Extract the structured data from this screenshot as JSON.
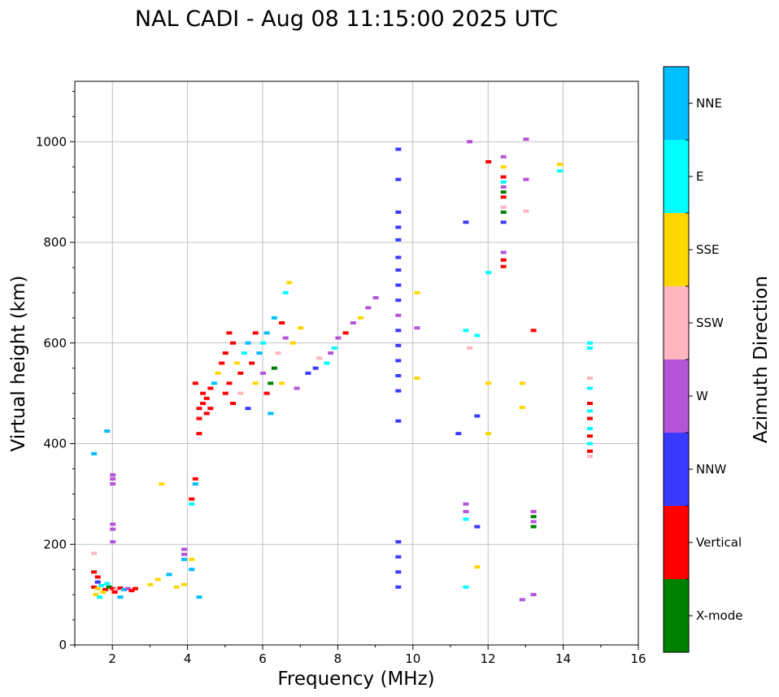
{
  "chart_data": {
    "type": "scatter",
    "title": "NAL CADI - Aug 08 11:15:00 2025 UTC",
    "xlabel": "Frequency (MHz)",
    "ylabel": "Virtual height (km)",
    "xlim": [
      1,
      16
    ],
    "ylim": [
      0,
      1120
    ],
    "xticks": [
      "2",
      "4",
      "6",
      "8",
      "10",
      "12",
      "14",
      "16"
    ],
    "yticks": [
      "0",
      "200",
      "400",
      "600",
      "800",
      "1000"
    ],
    "grid": true,
    "colorbar": {
      "label": "Azimuth Direction",
      "categories": [
        {
          "name": "X-mode",
          "color": "#008000"
        },
        {
          "name": "Vertical",
          "color": "#ff0000"
        },
        {
          "name": "NNW",
          "color": "#3a3aff"
        },
        {
          "name": "W",
          "color": "#b455d8"
        },
        {
          "name": "SSW",
          "color": "#ffb6c1"
        },
        {
          "name": "SSE",
          "color": "#ffd700"
        },
        {
          "name": "E",
          "color": "#00ffff"
        },
        {
          "name": "NNE",
          "color": "#00bfff"
        }
      ]
    },
    "points": [
      [
        1.5,
        115,
        "Vertical"
      ],
      [
        1.6,
        112,
        "SSE"
      ],
      [
        1.7,
        118,
        "E"
      ],
      [
        1.8,
        110,
        "Vertical"
      ],
      [
        1.9,
        115,
        "X-mode"
      ],
      [
        2.0,
        112,
        "Vertical"
      ],
      [
        2.1,
        110,
        "SSW"
      ],
      [
        2.2,
        113,
        "Vertical"
      ],
      [
        2.3,
        110,
        "NNE"
      ],
      [
        2.4,
        112,
        "W"
      ],
      [
        2.5,
        108,
        "Vertical"
      ],
      [
        1.55,
        100,
        "SSE"
      ],
      [
        1.65,
        95,
        "E"
      ],
      [
        1.5,
        145,
        "Vertical"
      ],
      [
        1.6,
        125,
        "NNW"
      ],
      [
        1.75,
        105,
        "SSE"
      ],
      [
        1.85,
        122,
        "E"
      ],
      [
        2.05,
        105,
        "Vertical"
      ],
      [
        2.2,
        95,
        "NNE"
      ],
      [
        2.6,
        112,
        "Vertical"
      ],
      [
        1.5,
        380,
        "NNE"
      ],
      [
        1.5,
        182,
        "SSW"
      ],
      [
        1.6,
        135,
        "Vertical"
      ],
      [
        1.85,
        425,
        "NNE"
      ],
      [
        2.0,
        330,
        "W"
      ],
      [
        2.0,
        338,
        "W"
      ],
      [
        2.0,
        320,
        "W"
      ],
      [
        2.0,
        240,
        "W"
      ],
      [
        2.0,
        230,
        "W"
      ],
      [
        2.0,
        205,
        "W"
      ],
      [
        3.0,
        120,
        "SSE"
      ],
      [
        3.2,
        130,
        "SSE"
      ],
      [
        3.5,
        140,
        "NNE"
      ],
      [
        3.7,
        115,
        "SSE"
      ],
      [
        3.9,
        120,
        "SSE"
      ],
      [
        3.9,
        170,
        "NNE"
      ],
      [
        3.9,
        190,
        "W"
      ],
      [
        3.9,
        180,
        "W"
      ],
      [
        4.1,
        170,
        "SSE"
      ],
      [
        4.1,
        150,
        "NNE"
      ],
      [
        3.3,
        320,
        "SSE"
      ],
      [
        4.1,
        290,
        "Vertical"
      ],
      [
        4.1,
        280,
        "E"
      ],
      [
        4.2,
        330,
        "Vertical"
      ],
      [
        4.2,
        320,
        "NNE"
      ],
      [
        4.3,
        95,
        "NNE"
      ],
      [
        4.3,
        450,
        "Vertical"
      ],
      [
        4.3,
        470,
        "Vertical"
      ],
      [
        4.4,
        480,
        "Vertical"
      ],
      [
        4.4,
        500,
        "Vertical"
      ],
      [
        4.5,
        460,
        "Vertical"
      ],
      [
        4.5,
        490,
        "Vertical"
      ],
      [
        4.6,
        470,
        "Vertical"
      ],
      [
        4.6,
        510,
        "Vertical"
      ],
      [
        4.2,
        520,
        "Vertical"
      ],
      [
        4.3,
        420,
        "Vertical"
      ],
      [
        4.7,
        520,
        "NNE"
      ],
      [
        4.8,
        540,
        "SSE"
      ],
      [
        4.9,
        560,
        "Vertical"
      ],
      [
        5.0,
        580,
        "Vertical"
      ],
      [
        5.0,
        500,
        "Vertical"
      ],
      [
        5.1,
        520,
        "Vertical"
      ],
      [
        5.1,
        620,
        "Vertical"
      ],
      [
        5.2,
        600,
        "Vertical"
      ],
      [
        5.3,
        560,
        "SSE"
      ],
      [
        5.4,
        540,
        "Vertical"
      ],
      [
        5.5,
        580,
        "E"
      ],
      [
        5.6,
        600,
        "NNE"
      ],
      [
        5.7,
        560,
        "Vertical"
      ],
      [
        5.8,
        620,
        "Vertical"
      ],
      [
        5.9,
        580,
        "NNE"
      ],
      [
        6.0,
        540,
        "W"
      ],
      [
        6.0,
        600,
        "E"
      ],
      [
        6.1,
        500,
        "Vertical"
      ],
      [
        6.2,
        520,
        "X-mode"
      ],
      [
        6.3,
        550,
        "X-mode"
      ],
      [
        6.4,
        580,
        "SSW"
      ],
      [
        6.5,
        520,
        "SSE"
      ],
      [
        5.2,
        480,
        "Vertical"
      ],
      [
        5.4,
        500,
        "SSW"
      ],
      [
        5.6,
        470,
        "NNW"
      ],
      [
        5.8,
        520,
        "SSE"
      ],
      [
        6.2,
        460,
        "NNE"
      ],
      [
        6.1,
        620,
        "NNE"
      ],
      [
        6.3,
        650,
        "NNE"
      ],
      [
        6.5,
        640,
        "Vertical"
      ],
      [
        6.6,
        700,
        "E"
      ],
      [
        6.7,
        720,
        "SSE"
      ],
      [
        6.6,
        610,
        "W"
      ],
      [
        6.8,
        600,
        "SSE"
      ],
      [
        6.9,
        510,
        "W"
      ],
      [
        7.0,
        630,
        "SSE"
      ],
      [
        7.2,
        540,
        "NNW"
      ],
      [
        7.4,
        550,
        "NNW"
      ],
      [
        7.5,
        570,
        "SSW"
      ],
      [
        7.7,
        560,
        "E"
      ],
      [
        7.8,
        580,
        "W"
      ],
      [
        7.9,
        590,
        "E"
      ],
      [
        8.0,
        610,
        "W"
      ],
      [
        8.2,
        620,
        "Vertical"
      ],
      [
        8.4,
        640,
        "W"
      ],
      [
        8.6,
        650,
        "SSE"
      ],
      [
        8.8,
        670,
        "W"
      ],
      [
        9.0,
        690,
        "W"
      ],
      [
        9.6,
        985,
        "NNW"
      ],
      [
        9.6,
        925,
        "NNW"
      ],
      [
        9.6,
        860,
        "NNW"
      ],
      [
        9.6,
        830,
        "NNW"
      ],
      [
        9.6,
        805,
        "NNW"
      ],
      [
        9.6,
        770,
        "NNW"
      ],
      [
        9.6,
        745,
        "NNW"
      ],
      [
        9.6,
        715,
        "NNW"
      ],
      [
        9.6,
        685,
        "NNW"
      ],
      [
        9.6,
        655,
        "W"
      ],
      [
        9.6,
        625,
        "NNW"
      ],
      [
        9.6,
        595,
        "NNW"
      ],
      [
        9.6,
        565,
        "NNW"
      ],
      [
        9.6,
        535,
        "NNW"
      ],
      [
        9.6,
        505,
        "NNW"
      ],
      [
        9.6,
        445,
        "NNW"
      ],
      [
        9.6,
        205,
        "NNW"
      ],
      [
        9.6,
        175,
        "NNW"
      ],
      [
        9.6,
        145,
        "NNW"
      ],
      [
        9.6,
        115,
        "NNW"
      ],
      [
        10.1,
        700,
        "SSE"
      ],
      [
        10.1,
        530,
        "SSE"
      ],
      [
        10.1,
        630,
        "W"
      ],
      [
        11.2,
        420,
        "NNW"
      ],
      [
        11.4,
        840,
        "NNW"
      ],
      [
        11.5,
        1000,
        "W"
      ],
      [
        11.5,
        590,
        "SSW"
      ],
      [
        11.4,
        625,
        "E"
      ],
      [
        11.7,
        615,
        "E"
      ],
      [
        11.7,
        455,
        "NNW"
      ],
      [
        11.7,
        235,
        "NNW"
      ],
      [
        11.7,
        155,
        "SSE"
      ],
      [
        11.4,
        115,
        "E"
      ],
      [
        11.4,
        280,
        "W"
      ],
      [
        11.4,
        265,
        "W"
      ],
      [
        11.4,
        250,
        "E"
      ],
      [
        12.0,
        960,
        "Vertical"
      ],
      [
        12.0,
        740,
        "E"
      ],
      [
        12.0,
        520,
        "SSE"
      ],
      [
        12.0,
        420,
        "SSE"
      ],
      [
        12.4,
        970,
        "W"
      ],
      [
        12.4,
        950,
        "SSE"
      ],
      [
        12.4,
        930,
        "Vertical"
      ],
      [
        12.4,
        910,
        "W"
      ],
      [
        12.4,
        900,
        "X-mode"
      ],
      [
        12.4,
        890,
        "Vertical"
      ],
      [
        12.4,
        860,
        "X-mode"
      ],
      [
        12.4,
        840,
        "NNW"
      ],
      [
        12.4,
        780,
        "W"
      ],
      [
        12.4,
        765,
        "Vertical"
      ],
      [
        12.4,
        752,
        "Vertical"
      ],
      [
        12.4,
        870,
        "SSW"
      ],
      [
        12.4,
        920,
        "E"
      ],
      [
        13.0,
        1005,
        "W"
      ],
      [
        13.0,
        925,
        "W"
      ],
      [
        13.0,
        862,
        "SSW"
      ],
      [
        12.9,
        520,
        "SSE"
      ],
      [
        12.9,
        472,
        "SSE"
      ],
      [
        12.9,
        90,
        "W"
      ],
      [
        13.2,
        625,
        "Vertical"
      ],
      [
        13.2,
        100,
        "W"
      ],
      [
        13.2,
        265,
        "W"
      ],
      [
        13.2,
        255,
        "X-mode"
      ],
      [
        13.2,
        245,
        "W"
      ],
      [
        13.2,
        235,
        "X-mode"
      ],
      [
        13.9,
        955,
        "SSE"
      ],
      [
        13.9,
        942,
        "E"
      ],
      [
        14.7,
        600,
        "E"
      ],
      [
        14.7,
        590,
        "E"
      ],
      [
        14.7,
        530,
        "SSW"
      ],
      [
        14.7,
        510,
        "E"
      ],
      [
        14.7,
        480,
        "Vertical"
      ],
      [
        14.7,
        465,
        "E"
      ],
      [
        14.7,
        450,
        "Vertical"
      ],
      [
        14.7,
        430,
        "E"
      ],
      [
        14.7,
        415,
        "Vertical"
      ],
      [
        14.7,
        400,
        "E"
      ],
      [
        14.7,
        385,
        "Vertical"
      ],
      [
        14.7,
        375,
        "SSW"
      ]
    ]
  }
}
